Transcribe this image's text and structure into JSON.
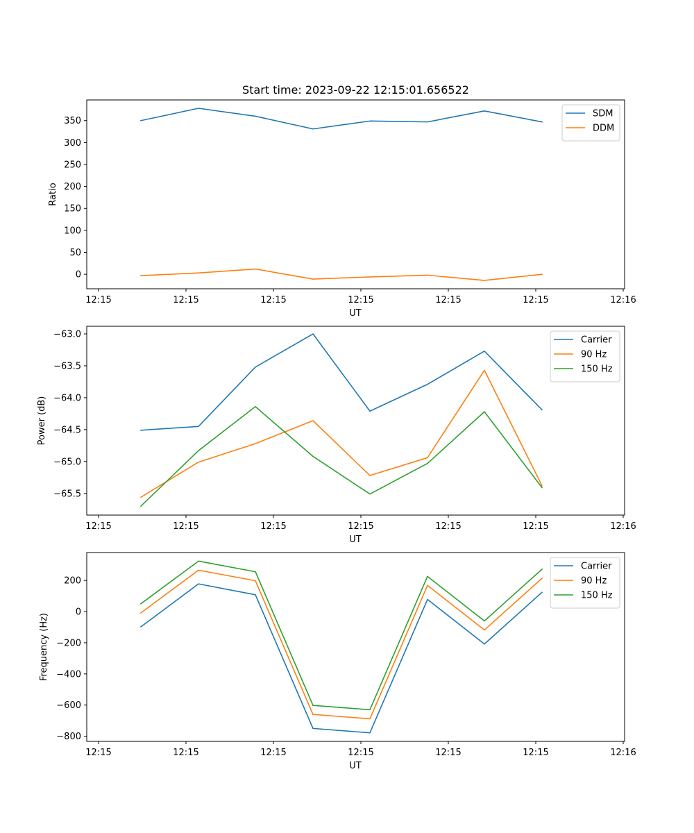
{
  "title": "Start time: 2023-09-22 12:15:01.656522",
  "colors": {
    "blue": "#1f77b4",
    "orange": "#ff7f0e",
    "green": "#2ca02c"
  },
  "chart_data": [
    {
      "type": "line",
      "title": "Start time: 2023-09-22 12:15:01.656522",
      "xlabel": "UT",
      "ylabel": "Ratio",
      "x_tick_labels": [
        "12:15",
        "12:15",
        "12:15",
        "12:15",
        "12:15",
        "12:15",
        "12:16"
      ],
      "y_ticks": [
        0,
        50,
        100,
        150,
        200,
        250,
        300,
        350
      ],
      "y_tick_labels": [
        "0",
        "50",
        "100",
        "150",
        "200",
        "250",
        "300",
        "350"
      ],
      "ylim": [
        -33,
        397
      ],
      "legend_position": "top-right",
      "series": [
        {
          "name": "SDM",
          "color": "#1f77b4",
          "values": [
            350,
            378,
            360,
            331,
            349,
            347,
            372,
            347
          ]
        },
        {
          "name": "DDM",
          "color": "#ff7f0e",
          "values": [
            -3,
            3,
            12,
            -11,
            -6,
            -2,
            -14,
            0
          ]
        }
      ]
    },
    {
      "type": "line",
      "xlabel": "UT",
      "ylabel": "Power (dB)",
      "x_tick_labels": [
        "12:15",
        "12:15",
        "12:15",
        "12:15",
        "12:15",
        "12:15",
        "12:16"
      ],
      "y_ticks": [
        -65.5,
        -65.0,
        -64.5,
        -64.0,
        -63.5,
        -63.0
      ],
      "y_tick_labels": [
        "−65.5",
        "−65.0",
        "−64.5",
        "−64.0",
        "−63.5",
        "−63.0"
      ],
      "ylim": [
        -65.84,
        -62.88
      ],
      "legend_position": "top-right",
      "series": [
        {
          "name": "Carrier",
          "color": "#1f77b4",
          "values": [
            -64.51,
            -64.45,
            -63.52,
            -63.0,
            -64.21,
            -63.79,
            -63.27,
            -64.19
          ]
        },
        {
          "name": "90 Hz",
          "color": "#ff7f0e",
          "values": [
            -65.56,
            -65.01,
            -64.72,
            -64.36,
            -65.22,
            -64.94,
            -63.57,
            -65.38
          ]
        },
        {
          "name": "150 Hz",
          "color": "#2ca02c",
          "values": [
            -65.7,
            -64.83,
            -64.14,
            -64.92,
            -65.51,
            -65.03,
            -64.22,
            -65.41
          ]
        }
      ]
    },
    {
      "type": "line",
      "xlabel": "UT",
      "ylabel": "Frequency (Hz)",
      "x_tick_labels": [
        "12:15",
        "12:15",
        "12:15",
        "12:15",
        "12:15",
        "12:15",
        "12:16"
      ],
      "y_ticks": [
        -800,
        -600,
        -400,
        -200,
        0,
        200
      ],
      "y_tick_labels": [
        "−800",
        "−600",
        "−400",
        "−200",
        "0",
        "200"
      ],
      "ylim": [
        -833,
        379
      ],
      "legend_position": "top-right",
      "series": [
        {
          "name": "Carrier",
          "color": "#1f77b4",
          "values": [
            -98,
            178,
            108,
            -750,
            -778,
            78,
            -208,
            124
          ]
        },
        {
          "name": "90 Hz",
          "color": "#ff7f0e",
          "values": [
            -8,
            266,
            198,
            -660,
            -688,
            168,
            -118,
            214
          ]
        },
        {
          "name": "150 Hz",
          "color": "#2ca02c",
          "values": [
            50,
            324,
            256,
            -602,
            -630,
            226,
            -60,
            272
          ]
        }
      ]
    }
  ]
}
